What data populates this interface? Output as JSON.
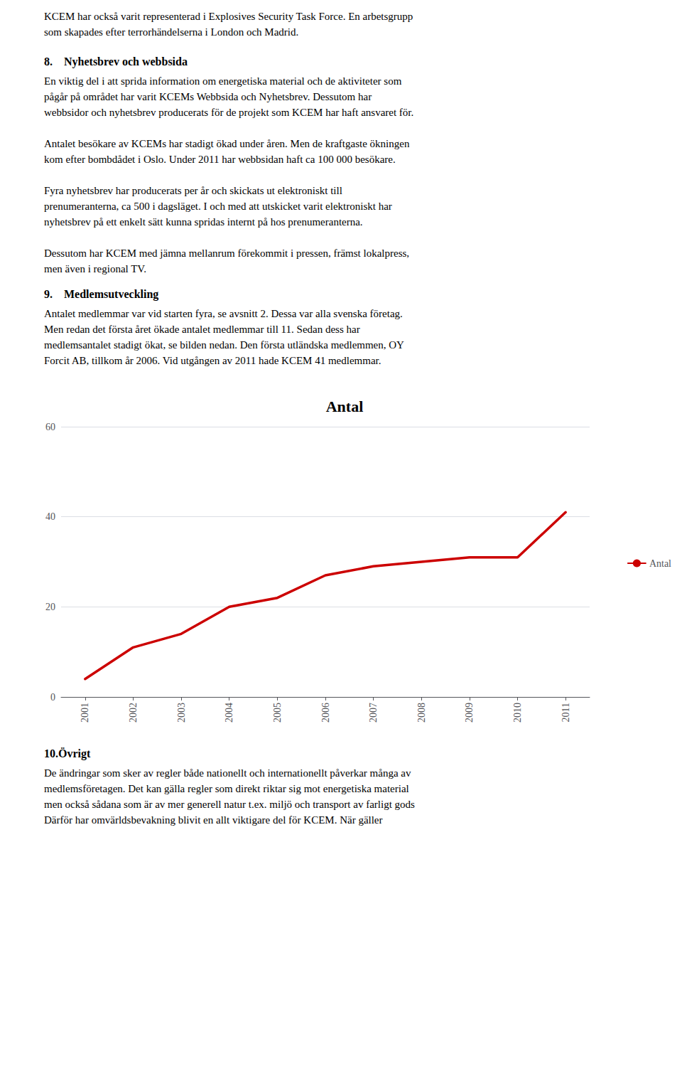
{
  "chart_data": {
    "type": "line",
    "title": "Antal",
    "categories": [
      "2001",
      "2002",
      "2003",
      "2004",
      "2005",
      "2006",
      "2007",
      "2008",
      "2009",
      "2010",
      "2011"
    ],
    "series": [
      {
        "name": "Antal",
        "color": "#CC0000",
        "values": [
          4,
          11,
          14,
          20,
          22,
          27,
          29,
          30,
          31,
          31,
          41
        ]
      }
    ],
    "ylim": [
      0,
      60
    ],
    "yticks": [
      0,
      20,
      40,
      60
    ],
    "grid": true,
    "legend": "right",
    "annotations": [
      "KCEM har också varit representerad i Explosives Security Task Force. En arbetsgrupp\nsom skapades efter terrorhändelserna i London och Madrid.",
      "8. Nyhetsbrev och webbsida",
      "En viktig del i att sprida information om energetiska material och de aktiviteter som\npågår på området har varit KCEMs Webbsida och Nyhetsbrev. Dessutom har\nwebbsidor och nyhetsbrev producerats för de projekt som KCEM har haft ansvaret för.\n\nAntalet besökare av KCEMs har stadigt ökad under åren. Men de kraftgaste ökningen\nkom efter bombdådet i Oslo. Under 2011 har webbsidan haft ca 100 000 besökare.\n\nFyra nyhetsbrev har producerats per år och skickats ut elektroniskt till\nprenumeranterna, ca 500 i dagsläget. I och med att utskicket varit elektroniskt har\nnyhetsbrev på ett enkelt sätt kunna spridas internt på hos prenumeranterna.\n\nDessutom har KCEM med jämna mellanrum förekommit i pressen, främst lokalpress,\nmen även i regional TV.",
      "9. Medlemsutveckling",
      "Antalet medlemmar var vid starten fyra, se avsnitt 2. Dessa var alla svenska företag.\nMen redan det första året ökade antalet medlemmar till 11. Sedan dess har\nmedlemsantalet stadigt ökat, se bilden nedan. Den första utländska medlemmen, OY\nForcit AB, tillkom år 2006. Vid utgången av 2011 hade KCEM 41 medlemmar.",
      "10.Övrigt",
      "De ändringar som sker av regler både nationellt och internationellt påverkar många av\nmedlemsföretagen. Det kan gälla regler som direkt riktar sig mot energetiska material\nmen också sådana som är av mer generell natur t.ex. miljö och transport av farligt gods\nDärför har omvärldsbevakning blivit en allt viktigare del för KCEM. När gäller"
    ]
  }
}
